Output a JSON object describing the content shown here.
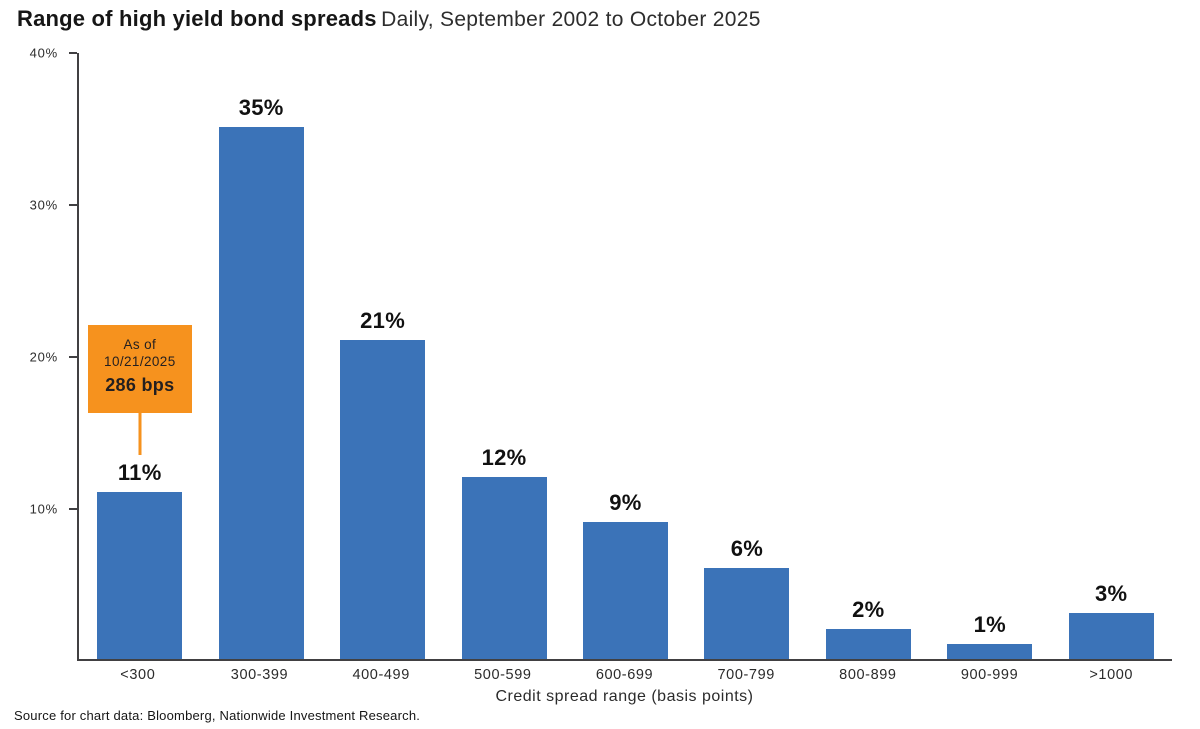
{
  "header": {
    "title": "Range of high yield bond spreads",
    "subtitle": "Daily, September 2002 to October 2025"
  },
  "callout": {
    "line1": "As of",
    "line2": "10/21/2025",
    "line3": "286 bps"
  },
  "footer": {
    "source": "Source for chart data: Bloomberg, Nationwide Investment Research."
  },
  "chart_data": {
    "type": "bar",
    "title": "Range of high yield bond spreads",
    "subtitle": "Daily, September 2002 to October 2025",
    "categories": [
      "<300",
      "300-399",
      "400-499",
      "500-599",
      "600-699",
      "700-799",
      "800-899",
      "900-999",
      ">1000"
    ],
    "values": [
      11,
      35,
      21,
      12,
      9,
      6,
      2,
      1,
      3
    ],
    "bar_labels": [
      "11%",
      "35%",
      "21%",
      "12%",
      "9%",
      "6%",
      "2%",
      "1%",
      "3%"
    ],
    "xlabel": "Credit spread range (basis points)",
    "ylabel": "",
    "ylim": [
      0,
      40
    ],
    "yticks": [
      {
        "value": 10,
        "label": "10%"
      },
      {
        "value": 20,
        "label": "20%"
      },
      {
        "value": 30,
        "label": "30%"
      },
      {
        "value": 40,
        "label": "40%"
      }
    ],
    "grid": false,
    "legend": false,
    "bar_color": "#3B73B8",
    "axis_color": "#414042",
    "annotation": {
      "text_lines": [
        "As of",
        "10/21/2025",
        "286 bps"
      ],
      "target_category": "<300",
      "box_color": "#F6921E"
    }
  }
}
